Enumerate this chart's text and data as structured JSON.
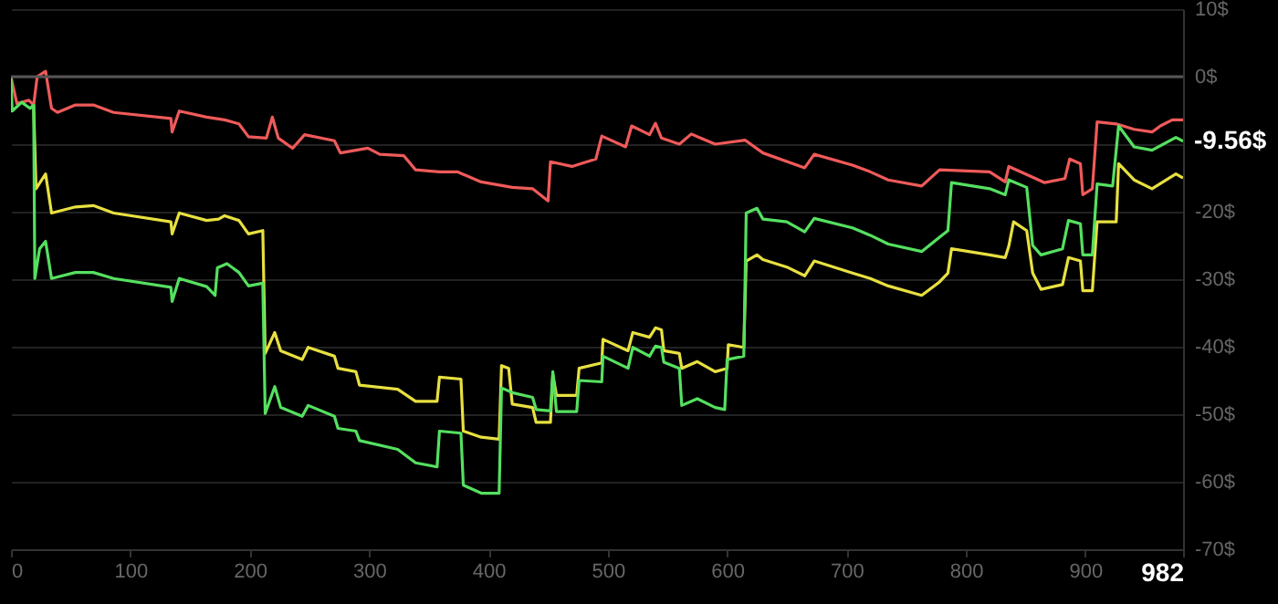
{
  "chart_data": {
    "type": "line",
    "xlim": [
      0,
      982
    ],
    "xticks": [
      0,
      100,
      200,
      300,
      400,
      500,
      600,
      700,
      800,
      900,
      982
    ],
    "ylim": [
      -70,
      10
    ],
    "yticks": [
      {
        "value": 10,
        "label": "10$"
      },
      {
        "value": 0,
        "label": "0$"
      },
      {
        "value": -10,
        "label": null
      },
      {
        "value": -20,
        "label": "-20$"
      },
      {
        "value": -30,
        "label": "-30$"
      },
      {
        "value": -40,
        "label": "-40$"
      },
      {
        "value": -50,
        "label": "-50$"
      },
      {
        "value": -60,
        "label": "-60$"
      },
      {
        "value": -70,
        "label": "-70$"
      }
    ],
    "grid": "y",
    "line_style": "solid",
    "marker": "none",
    "ref_lines": [
      {
        "axis": "y",
        "value": 0,
        "color": "#555555"
      }
    ],
    "annotations": [
      {
        "text": "-9.56$",
        "x": 982,
        "y": -9.56
      }
    ],
    "series": [
      {
        "color": "#f05a5a",
        "x": [
          0,
          5,
          15,
          19,
          22,
          29,
          34,
          39,
          54,
          69,
          86,
          134,
          135,
          141,
          164,
          179,
          191,
          199,
          214,
          219,
          224,
          236,
          246,
          271,
          276,
          299,
          309,
          329,
          339,
          359,
          374,
          394,
          420,
          437,
          450,
          452,
          470,
          490,
          495,
          515,
          520,
          535,
          540,
          545,
          560,
          570,
          590,
          615,
          630,
          665,
          673,
          705,
          720,
          735,
          763,
          778,
          820,
          833,
          836,
          856,
          866,
          883,
          887,
          896,
          898,
          906,
          910,
          926,
          941,
          956,
          963,
          973,
          982
        ],
        "values": [
          0,
          -4,
          -3.5,
          -4.2,
          0,
          0.8,
          -4.7,
          -5.3,
          -4.2,
          -4.2,
          -5.3,
          -6.2,
          -8.2,
          -5.1,
          -6,
          -6.4,
          -7,
          -8.9,
          -9.1,
          -6,
          -9.1,
          -10.6,
          -8.6,
          -9.5,
          -11.3,
          -10.6,
          -11.5,
          -11.7,
          -13.8,
          -14.1,
          -14.1,
          -15.6,
          -16.4,
          -16.6,
          -18.4,
          -12.6,
          -13.3,
          -12.2,
          -8.8,
          -10.4,
          -7.3,
          -8.6,
          -6.9,
          -9.1,
          -10,
          -8.5,
          -10,
          -9.4,
          -11.3,
          -13.5,
          -11.5,
          -13.1,
          -14.1,
          -15.3,
          -16.2,
          -13.8,
          -14.1,
          -15.6,
          -13.3,
          -14.9,
          -15.7,
          -15.1,
          -12.2,
          -12.9,
          -17.5,
          -16.6,
          -6.7,
          -7,
          -7.8,
          -8.2,
          -7.3,
          -6.4,
          -6.4
        ]
      },
      {
        "color": "#e8e040",
        "x": [
          19,
          21,
          29,
          34,
          54,
          69,
          86,
          134,
          135,
          141,
          164,
          174,
          179,
          191,
          199,
          211,
          213,
          221,
          226,
          244,
          249,
          271,
          274,
          289,
          292,
          324,
          339,
          357,
          359,
          377,
          379,
          394,
          409,
          411,
          417,
          420,
          437,
          440,
          452,
          454,
          457,
          474,
          476,
          495,
          496,
          517,
          521,
          535,
          540,
          545,
          547,
          560,
          562,
          575,
          590,
          600,
          601,
          614,
          616,
          625,
          630,
          650,
          665,
          673,
          705,
          720,
          735,
          763,
          778,
          785,
          788,
          820,
          833,
          836,
          840,
          851,
          856,
          863,
          881,
          886,
          896,
          898,
          906,
          910,
          926,
          928,
          941,
          956,
          976,
          982
        ],
        "values": [
          -4.2,
          -16.6,
          -14.4,
          -20.2,
          -19.3,
          -19.1,
          -20.2,
          -21.5,
          -23.3,
          -20.2,
          -21.3,
          -21.1,
          -20.6,
          -21.3,
          -23.3,
          -22.8,
          -41,
          -37.9,
          -40.6,
          -41.9,
          -40.1,
          -41.4,
          -43.2,
          -43.7,
          -45.7,
          -46.3,
          -48.1,
          -48.1,
          -44.5,
          -44.8,
          -52.5,
          -53.4,
          -53.7,
          -42.8,
          -43.2,
          -48.5,
          -49,
          -51.2,
          -51.2,
          -44.1,
          -47.2,
          -47.2,
          -43.2,
          -42.4,
          -38.9,
          -40.6,
          -37.9,
          -38.6,
          -37.2,
          -37.5,
          -40.6,
          -41,
          -43.2,
          -42.2,
          -43.7,
          -43.2,
          -39.7,
          -40.1,
          -27.3,
          -26.4,
          -27.1,
          -28.2,
          -29.5,
          -27.3,
          -29.1,
          -29.9,
          -31,
          -32.4,
          -30.4,
          -29.1,
          -25.5,
          -26.4,
          -26.8,
          -25.1,
          -21.5,
          -22.8,
          -29.1,
          -31.5,
          -30.8,
          -26.8,
          -27.3,
          -31.7,
          -31.7,
          -21.5,
          -21.5,
          -12.9,
          -15.3,
          -16.6,
          -14.4,
          -15
        ]
      },
      {
        "color": "#55e060",
        "x": [
          0,
          1,
          9,
          16,
          19,
          20,
          24,
          29,
          34,
          54,
          69,
          86,
          134,
          135,
          141,
          164,
          171,
          173,
          181,
          191,
          199,
          211,
          213,
          221,
          226,
          244,
          249,
          271,
          274,
          289,
          292,
          324,
          339,
          357,
          359,
          377,
          379,
          394,
          409,
          411,
          420,
          437,
          440,
          452,
          454,
          457,
          474,
          476,
          495,
          496,
          517,
          521,
          535,
          540,
          545,
          547,
          560,
          562,
          575,
          590,
          598,
          600,
          614,
          616,
          625,
          630,
          650,
          665,
          673,
          705,
          720,
          735,
          763,
          778,
          785,
          788,
          820,
          833,
          836,
          851,
          856,
          863,
          881,
          886,
          896,
          898,
          906,
          910,
          923,
          928,
          941,
          956,
          976,
          982
        ],
        "values": [
          0,
          -5.1,
          -3.8,
          -4.7,
          -4.2,
          -29.9,
          -25.5,
          -24.4,
          -29.9,
          -29,
          -29,
          -29.9,
          -31.2,
          -33.3,
          -29.9,
          -31.1,
          -32.4,
          -28.3,
          -27.7,
          -29,
          -31,
          -30.6,
          -49.9,
          -45.9,
          -49,
          -50.3,
          -48.7,
          -50.3,
          -52.1,
          -52.5,
          -53.9,
          -55.2,
          -57.2,
          -57.8,
          -52.5,
          -52.8,
          -60.5,
          -61.7,
          -61.7,
          -46.1,
          -46.8,
          -47.5,
          -49.3,
          -49.5,
          -43.7,
          -49.6,
          -49.6,
          -45,
          -45.2,
          -41.4,
          -43.2,
          -40.1,
          -41.4,
          -39.9,
          -40.1,
          -42.3,
          -43.2,
          -48.7,
          -47.7,
          -49,
          -49.3,
          -41.9,
          -41.4,
          -20.2,
          -19.5,
          -21.1,
          -21.5,
          -23,
          -21,
          -22.4,
          -23.5,
          -24.8,
          -25.9,
          -23.8,
          -22.8,
          -15.7,
          -16.6,
          -17.5,
          -15.3,
          -16.4,
          -25,
          -26.4,
          -25.5,
          -21.3,
          -21.8,
          -26.4,
          -26.4,
          -15.9,
          -16.2,
          -7.3,
          -10.4,
          -10.9,
          -9,
          -9.56
        ]
      }
    ]
  }
}
